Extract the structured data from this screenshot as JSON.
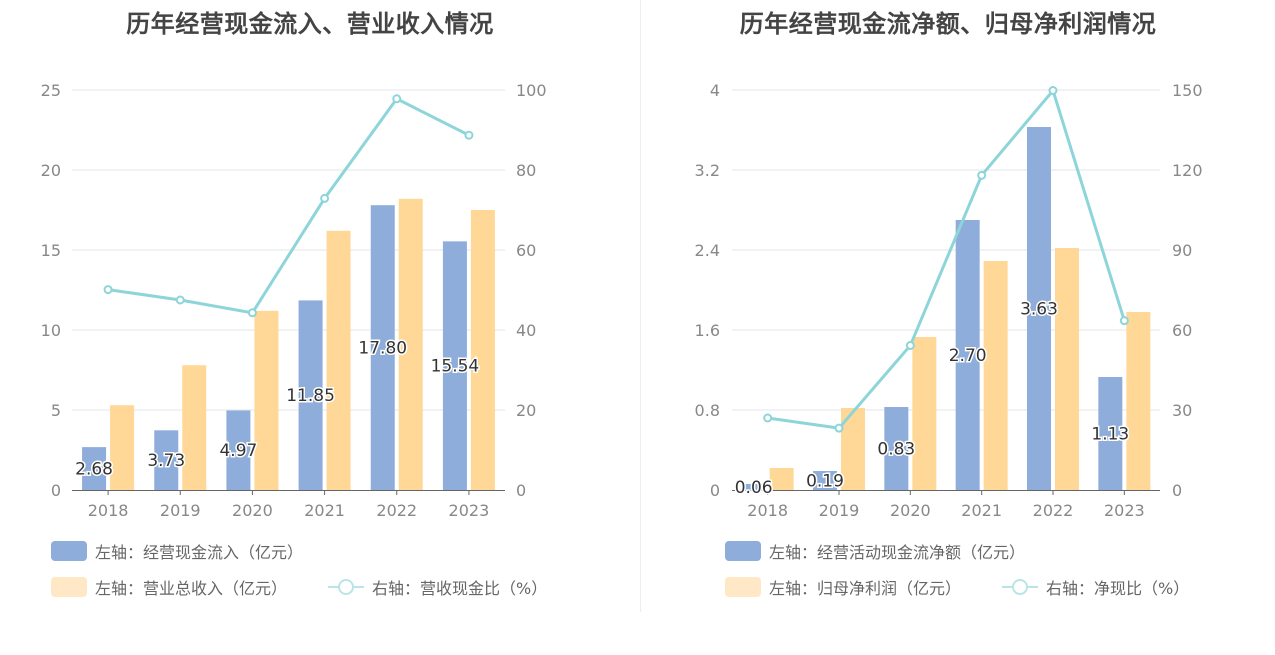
{
  "colors": {
    "blue": "#8eaddb",
    "orange": "#ffd897",
    "teal": "#8dd5d9",
    "grid": "#e3e6ea",
    "axis": "#666666",
    "text": "#888888"
  },
  "charts": [
    {
      "title": "历年经营现金流入、营业收入情况",
      "legend": {
        "bar1": "左轴：经营现金流入（亿元）",
        "bar2": "左轴：营业总收入（亿元）",
        "line": "右轴：营收现金比（%）"
      },
      "chart_data": {
        "type": "bar",
        "categories": [
          "2018",
          "2019",
          "2020",
          "2021",
          "2022",
          "2023"
        ],
        "left_ticks": [
          "0",
          "5",
          "10",
          "15",
          "20",
          "25"
        ],
        "right_ticks": [
          "0",
          "20",
          "40",
          "60",
          "80",
          "100"
        ],
        "ylim_left": [
          0,
          25
        ],
        "ylim_right": [
          0,
          100
        ],
        "series": [
          {
            "name": "经营现金流入（亿元）",
            "axis": "left",
            "kind": "bar",
            "values": [
              2.68,
              3.73,
              4.97,
              11.85,
              17.8,
              15.54
            ],
            "labels": [
              "2.68",
              "3.73",
              "4.97",
              "11.85",
              "17.80",
              "15.54"
            ]
          },
          {
            "name": "营业总收入（亿元）",
            "axis": "left",
            "kind": "bar",
            "values": [
              5.3,
              7.8,
              11.2,
              16.2,
              18.2,
              17.5
            ]
          },
          {
            "name": "营收现金比（%）",
            "axis": "right",
            "kind": "line",
            "values": [
              50.1,
              47.5,
              44.3,
              72.9,
              97.8,
              88.7
            ]
          }
        ]
      }
    },
    {
      "title": "历年经营现金流净额、归母净利润情况",
      "legend": {
        "bar1": "左轴：经营活动现金流净额（亿元）",
        "bar2": "左轴：归母净利润（亿元）",
        "line": "右轴：净现比（%）"
      },
      "chart_data": {
        "type": "bar",
        "categories": [
          "2018",
          "2019",
          "2020",
          "2021",
          "2022",
          "2023"
        ],
        "left_ticks": [
          "0",
          "0.8",
          "1.6",
          "2.4",
          "3.2",
          "4"
        ],
        "right_ticks": [
          "0",
          "30",
          "60",
          "90",
          "120",
          "150"
        ],
        "ylim_left": [
          0,
          4
        ],
        "ylim_right": [
          0,
          150
        ],
        "series": [
          {
            "name": "经营活动现金流净额（亿元）",
            "axis": "left",
            "kind": "bar",
            "values": [
              0.06,
              0.19,
              0.83,
              2.7,
              3.63,
              1.13
            ],
            "labels": [
              "0.06",
              "0.19",
              "0.83",
              "2.70",
              "3.63",
              "1.13"
            ]
          },
          {
            "name": "归母净利润（亿元）",
            "axis": "left",
            "kind": "bar",
            "values": [
              0.22,
              0.82,
              1.53,
              2.29,
              2.42,
              1.78
            ]
          },
          {
            "name": "净现比（%）",
            "axis": "right",
            "kind": "line",
            "values": [
              27.0,
              23.2,
              54.2,
              118.0,
              149.8,
              63.5
            ]
          }
        ]
      }
    }
  ]
}
